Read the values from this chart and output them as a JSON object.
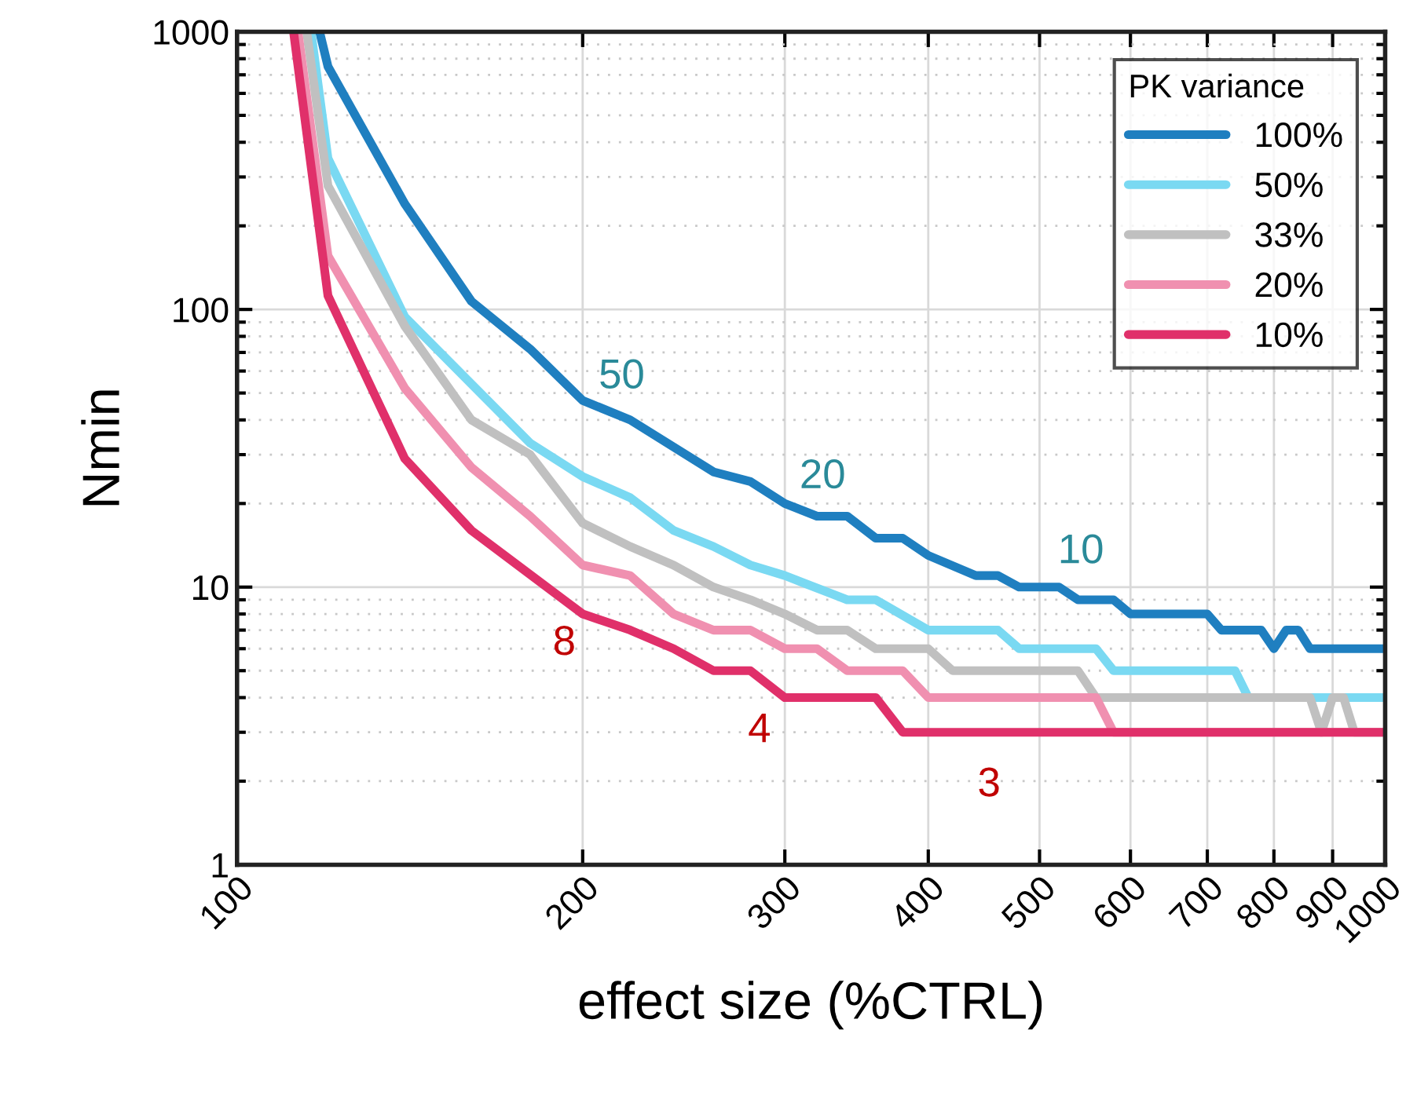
{
  "chart_data": {
    "type": "line",
    "xlabel": "effect size (%CTRL)",
    "ylabel": "Nmin",
    "legend_title": "PK variance",
    "legend": "top right",
    "log": "xy",
    "grid": true,
    "xlim": [
      100,
      1000
    ],
    "xticks": [
      100,
      200,
      300,
      400,
      500,
      600,
      700,
      800,
      900,
      1000
    ],
    "ylim": [
      1,
      1000
    ],
    "yticks": [
      1,
      10,
      100,
      1000
    ],
    "series": [
      {
        "name": "100%",
        "color": "#1f7fc0",
        "x": [
          118,
          120,
          140,
          160,
          180,
          200,
          220,
          260,
          280,
          300,
          320,
          340,
          360,
          380,
          400,
          440,
          460,
          480,
          520,
          540,
          580,
          600,
          700,
          720,
          780,
          800,
          820,
          840,
          860,
          1000
        ],
        "values": [
          1000,
          750,
          240,
          107,
          72,
          47,
          40,
          26,
          24,
          20,
          18,
          18,
          15,
          15,
          13,
          11,
          11,
          10,
          10,
          9,
          9,
          8,
          8,
          7,
          7,
          6,
          7,
          7,
          6,
          6
        ]
      },
      {
        "name": "50%",
        "color": "#7ad9f2",
        "x": [
          116,
          120,
          140,
          180,
          200,
          220,
          240,
          260,
          280,
          300,
          340,
          360,
          400,
          460,
          480,
          560,
          580,
          740,
          760,
          1000
        ],
        "values": [
          1000,
          350,
          94,
          33,
          25,
          21,
          16,
          14,
          12,
          11,
          9,
          9,
          7,
          7,
          6,
          6,
          5,
          5,
          4,
          4
        ]
      },
      {
        "name": "33%",
        "color": "#c0c0c0",
        "x": [
          115,
          120,
          140,
          160,
          180,
          200,
          220,
          240,
          260,
          280,
          300,
          320,
          340,
          360,
          400,
          420,
          540,
          560,
          860,
          880,
          900,
          920,
          940,
          1000
        ],
        "values": [
          1000,
          279,
          87,
          40,
          30,
          17,
          14,
          12,
          10,
          9,
          8,
          7,
          7,
          6,
          6,
          5,
          5,
          4,
          4,
          3,
          4,
          4,
          3,
          3
        ]
      },
      {
        "name": "20%",
        "color": "#f090b0",
        "x": [
          113,
          120,
          140,
          160,
          180,
          200,
          220,
          240,
          260,
          280,
          300,
          320,
          340,
          380,
          400,
          560,
          580,
          1000
        ],
        "values": [
          1000,
          156,
          52,
          27,
          18,
          12,
          11,
          8,
          7,
          7,
          6,
          6,
          5,
          5,
          4,
          4,
          3,
          3
        ]
      },
      {
        "name": "10%",
        "color": "#e0306a",
        "x": [
          112,
          120,
          140,
          160,
          200,
          220,
          240,
          260,
          280,
          300,
          360,
          380,
          1000
        ],
        "values": [
          1000,
          112,
          29,
          16,
          8,
          7,
          6,
          5,
          5,
          4,
          4,
          3,
          3
        ]
      }
    ],
    "annotations": [
      "50",
      "20",
      "10",
      "8",
      "4",
      "3"
    ]
  }
}
